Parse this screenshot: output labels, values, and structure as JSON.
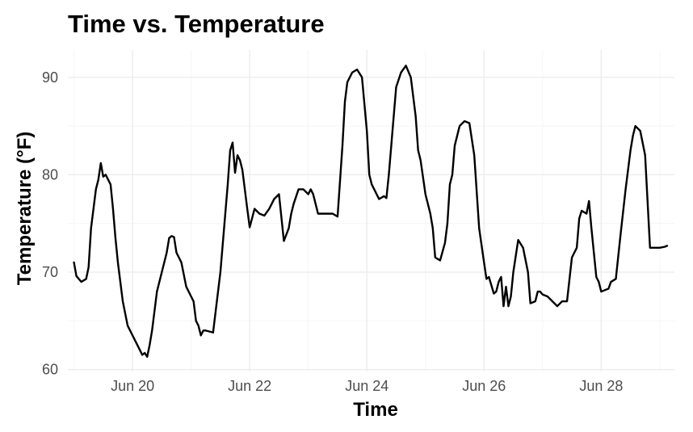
{
  "chart_data": {
    "type": "line",
    "title": "Time vs. Temperature",
    "xlabel": "Time",
    "ylabel": "Temperature (°F)",
    "x_tick_labels": [
      "Jun 20",
      "Jun 22",
      "Jun 24",
      "Jun 26",
      "Jun 28"
    ],
    "x_tick_dates": [
      "2024-06-20",
      "2024-06-22",
      "2024-06-24",
      "2024-06-26",
      "2024-06-28"
    ],
    "y_tick_labels": [
      "60",
      "70",
      "80",
      "90"
    ],
    "y_ticks": [
      60,
      70,
      80,
      90
    ],
    "xlim": [
      "2024-06-18T21:30",
      "2024-06-29T06:00"
    ],
    "ylim": [
      59.8,
      92.8
    ],
    "grid": true,
    "line_color": "#000000",
    "series": [
      {
        "x": [
          "2024-06-19T00:00",
          "2024-06-19T01:00",
          "2024-06-19T03:00",
          "2024-06-19T05:00",
          "2024-06-19T06:00",
          "2024-06-19T07:00",
          "2024-06-19T08:00",
          "2024-06-19T09:00",
          "2024-06-19T10:00",
          "2024-06-19T11:00",
          "2024-06-19T12:00",
          "2024-06-19T13:00",
          "2024-06-19T14:00",
          "2024-06-19T15:00",
          "2024-06-19T16:00",
          "2024-06-19T17:00",
          "2024-06-19T18:00",
          "2024-06-19T20:00",
          "2024-06-19T22:00",
          "2024-06-20T00:00",
          "2024-06-20T02:00",
          "2024-06-20T03:00",
          "2024-06-20T04:00",
          "2024-06-20T05:00",
          "2024-06-20T06:00",
          "2024-06-20T07:00",
          "2024-06-20T08:00",
          "2024-06-20T10:00",
          "2024-06-20T12:00",
          "2024-06-20T14:00",
          "2024-06-20T15:00",
          "2024-06-20T16:00",
          "2024-06-20T17:00",
          "2024-06-20T18:00",
          "2024-06-20T20:00",
          "2024-06-20T22:00",
          "2024-06-21T00:00",
          "2024-06-21T01:00",
          "2024-06-21T02:00",
          "2024-06-21T03:00",
          "2024-06-21T04:00",
          "2024-06-21T05:00",
          "2024-06-21T06:00",
          "2024-06-21T09:00",
          "2024-06-21T12:00",
          "2024-06-21T14:00",
          "2024-06-21T15:00",
          "2024-06-21T16:00",
          "2024-06-21T17:00",
          "2024-06-21T18:00",
          "2024-06-21T19:00",
          "2024-06-21T20:00",
          "2024-06-21T21:00",
          "2024-06-21T23:00",
          "2024-06-22T00:00",
          "2024-06-22T02:00",
          "2024-06-22T04:00",
          "2024-06-22T06:00",
          "2024-06-22T08:00",
          "2024-06-22T09:00",
          "2024-06-22T10:00",
          "2024-06-22T12:00",
          "2024-06-22T14:00",
          "2024-06-22T16:00",
          "2024-06-22T17:00",
          "2024-06-22T18:00",
          "2024-06-22T20:00",
          "2024-06-22T22:00",
          "2024-06-23T00:00",
          "2024-06-23T01:00",
          "2024-06-23T02:00",
          "2024-06-23T04:00",
          "2024-06-23T06:00",
          "2024-06-23T07:00",
          "2024-06-23T08:00",
          "2024-06-23T10:00",
          "2024-06-23T12:00",
          "2024-06-23T14:00",
          "2024-06-23T15:00",
          "2024-06-23T16:00",
          "2024-06-23T18:00",
          "2024-06-23T20:00",
          "2024-06-23T22:00",
          "2024-06-24T00:00",
          "2024-06-24T01:00",
          "2024-06-24T02:00",
          "2024-06-24T03:00",
          "2024-06-24T04:00",
          "2024-06-24T05:00",
          "2024-06-24T07:00",
          "2024-06-24T08:00",
          "2024-06-24T09:00",
          "2024-06-24T10:00",
          "2024-06-24T12:00",
          "2024-06-24T14:00",
          "2024-06-24T16:00",
          "2024-06-24T18:00",
          "2024-06-24T19:00",
          "2024-06-24T20:00",
          "2024-06-24T21:00",
          "2024-06-24T22:00",
          "2024-06-25T00:00",
          "2024-06-25T02:00",
          "2024-06-25T03:00",
          "2024-06-25T04:00",
          "2024-06-25T06:00",
          "2024-06-25T08:00",
          "2024-06-25T09:00",
          "2024-06-25T10:00",
          "2024-06-25T11:00",
          "2024-06-25T12:00",
          "2024-06-25T14:00",
          "2024-06-25T16:00",
          "2024-06-25T18:00",
          "2024-06-25T20:00",
          "2024-06-25T22:00",
          "2024-06-26T00:00",
          "2024-06-26T01:00",
          "2024-06-26T02:00",
          "2024-06-26T04:00",
          "2024-06-26T05:00",
          "2024-06-26T06:00",
          "2024-06-26T07:00",
          "2024-06-26T08:00",
          "2024-06-26T09:00",
          "2024-06-26T10:00",
          "2024-06-26T11:00",
          "2024-06-26T12:00",
          "2024-06-26T14:00",
          "2024-06-26T16:00",
          "2024-06-26T18:00",
          "2024-06-26T19:00",
          "2024-06-26T21:00",
          "2024-06-26T22:00",
          "2024-06-26T23:00",
          "2024-06-27T00:00",
          "2024-06-27T02:00",
          "2024-06-27T04:00",
          "2024-06-27T06:00",
          "2024-06-27T08:00",
          "2024-06-27T10:00",
          "2024-06-27T12:00",
          "2024-06-27T14:00",
          "2024-06-27T15:00",
          "2024-06-27T16:00",
          "2024-06-27T18:00",
          "2024-06-27T19:00",
          "2024-06-27T20:00",
          "2024-06-27T21:00",
          "2024-06-27T22:00",
          "2024-06-27T23:00",
          "2024-06-28T00:00",
          "2024-06-28T02:00",
          "2024-06-28T03:00",
          "2024-06-28T04:00",
          "2024-06-28T06:00",
          "2024-06-28T08:00",
          "2024-06-28T10:00",
          "2024-06-28T12:00",
          "2024-06-28T13:00",
          "2024-06-28T14:00",
          "2024-06-28T16:00",
          "2024-06-28T18:00",
          "2024-06-28T20:00",
          "2024-06-28T22:00",
          "2024-06-29T00:00",
          "2024-06-29T02:00",
          "2024-06-29T03:00"
        ],
        "y": [
          71.0,
          69.6,
          69.0,
          69.3,
          70.5,
          74.5,
          76.5,
          78.5,
          79.5,
          81.2,
          79.8,
          80.0,
          79.5,
          79.0,
          76.5,
          73.5,
          71.0,
          67.0,
          64.5,
          63.5,
          62.5,
          62.0,
          61.5,
          61.7,
          61.3,
          62.5,
          64.0,
          68.0,
          70.0,
          72.0,
          73.5,
          73.7,
          73.6,
          72.0,
          71.0,
          68.5,
          67.5,
          67.0,
          65.0,
          64.5,
          63.5,
          64.0,
          64.0,
          63.8,
          70.0,
          76.0,
          79.0,
          82.5,
          83.3,
          80.2,
          82.0,
          81.5,
          80.5,
          76.5,
          74.6,
          76.5,
          76.0,
          75.8,
          76.5,
          77.0,
          77.5,
          78.0,
          73.2,
          74.5,
          76.0,
          77.0,
          78.5,
          78.5,
          78.0,
          78.5,
          78.0,
          76.0,
          76.0,
          76.0,
          76.0,
          76.0,
          75.7,
          83.0,
          87.5,
          89.5,
          90.5,
          90.8,
          90.0,
          84.5,
          80.0,
          79.0,
          78.5,
          78.0,
          77.5,
          77.8,
          77.6,
          80.0,
          83.0,
          89.0,
          90.5,
          91.2,
          90.0,
          88.0,
          86.0,
          82.5,
          81.5,
          78.0,
          76.0,
          74.5,
          71.5,
          71.2,
          73.0,
          75.0,
          79.0,
          80.0,
          83.0,
          85.0,
          85.5,
          85.3,
          82.0,
          74.5,
          71.0,
          69.3,
          69.5,
          67.8,
          68.0,
          69.0,
          69.5,
          66.5,
          68.5,
          66.5,
          67.5,
          70.0,
          73.3,
          72.5,
          70.0,
          66.8,
          67.0,
          68.0,
          68.0,
          67.7,
          67.5,
          67.0,
          66.5,
          67.0,
          67.0,
          71.5,
          72.5,
          75.5,
          76.3,
          76.0,
          77.3,
          74.5,
          72.0,
          69.5,
          69.0,
          68.0,
          68.2,
          68.3,
          69.0,
          69.3,
          74.0,
          78.5,
          82.5,
          84.0,
          85.0,
          84.5,
          82.0,
          72.5,
          72.5,
          72.5,
          72.6,
          72.7
        ]
      }
    ]
  }
}
